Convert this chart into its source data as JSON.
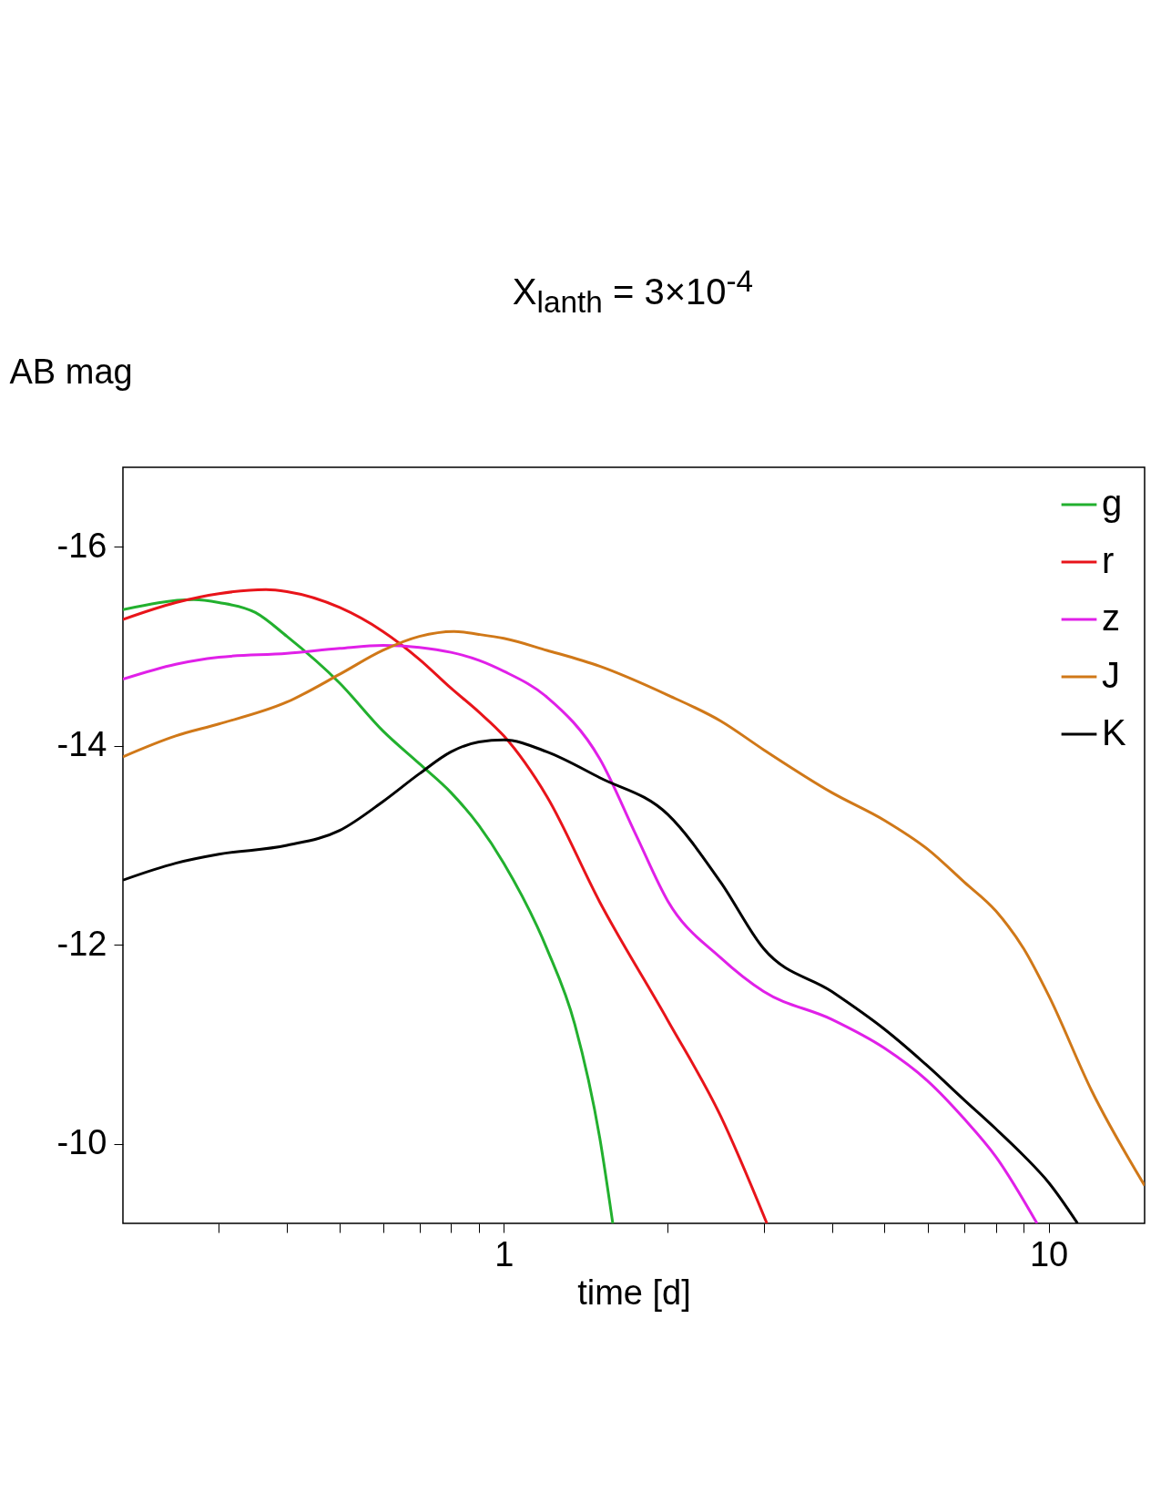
{
  "chart_data": {
    "type": "line",
    "title": "X$_{lanth}$ = 3×10$^{-4}$",
    "xlabel": "time [d]",
    "ylabel": "AB mag",
    "log": "x",
    "grid": false,
    "legend": "top right",
    "line_style": "solid",
    "marker": "none",
    "xlim": [
      0.2,
      15
    ],
    "xticks": [
      {
        "value": 0.3,
        "label": null
      },
      {
        "value": 0.4,
        "label": null
      },
      {
        "value": 0.5,
        "label": null
      },
      {
        "value": 0.6,
        "label": null
      },
      {
        "value": 0.7,
        "label": null
      },
      {
        "value": 0.8,
        "label": null
      },
      {
        "value": 0.9,
        "label": null
      },
      1,
      {
        "value": 2,
        "label": null
      },
      {
        "value": 3,
        "label": null
      },
      {
        "value": 4,
        "label": null
      },
      {
        "value": 5,
        "label": null
      },
      {
        "value": 6,
        "label": null
      },
      {
        "value": 7,
        "label": null
      },
      {
        "value": 8,
        "label": null
      },
      {
        "value": 9,
        "label": null
      },
      10
    ],
    "ylim": [
      -9.2,
      -16.8
    ],
    "yticks": [
      -16,
      -14,
      -12,
      -10
    ],
    "series": [
      {
        "name": "g",
        "color": "#22b02e",
        "x": [
          0.2,
          0.27,
          0.3,
          0.35,
          0.4,
          0.5,
          0.6,
          0.7,
          0.8,
          0.9,
          1,
          1.2,
          1.35,
          1.5,
          1.585
        ],
        "values": [
          -15.37,
          -15.47,
          -15.44,
          -15.34,
          -15.1,
          -14.63,
          -14.15,
          -13.82,
          -13.53,
          -13.2,
          -12.82,
          -11.96,
          -11.2,
          -10.06,
          -9.2
        ]
      },
      {
        "name": "r",
        "color": "#e8141a",
        "x": [
          0.2,
          0.25,
          0.3,
          0.366,
          0.4,
          0.5,
          0.6,
          0.7,
          0.8,
          0.9,
          1,
          1.2,
          1.5,
          2,
          2.5,
          3.04
        ],
        "values": [
          -15.27,
          -15.44,
          -15.53,
          -15.57,
          -15.55,
          -15.39,
          -15.15,
          -14.87,
          -14.58,
          -14.34,
          -14.1,
          -13.49,
          -12.43,
          -11.24,
          -10.28,
          -9.2
        ]
      },
      {
        "name": "z",
        "color": "#e020e8",
        "x": [
          0.2,
          0.25,
          0.3,
          0.4,
          0.5,
          0.6,
          0.7,
          0.8,
          0.9,
          1,
          1.2,
          1.5,
          1.75,
          2,
          2.5,
          3,
          4,
          5,
          6,
          7,
          8,
          9.52
        ],
        "values": [
          -14.67,
          -14.82,
          -14.89,
          -14.93,
          -14.98,
          -15.01,
          -14.99,
          -14.94,
          -14.86,
          -14.75,
          -14.49,
          -13.87,
          -13.1,
          -12.44,
          -11.87,
          -11.53,
          -11.25,
          -10.96,
          -10.63,
          -10.25,
          -9.87,
          -9.2
        ]
      },
      {
        "name": "J",
        "color": "#d07818",
        "x": [
          0.2,
          0.25,
          0.3,
          0.4,
          0.5,
          0.6,
          0.7,
          0.81,
          0.9,
          1,
          1.2,
          1.5,
          2,
          2.5,
          3,
          4,
          5,
          6,
          7,
          8,
          9,
          10,
          12,
          15
        ],
        "values": [
          -13.89,
          -14.1,
          -14.22,
          -14.44,
          -14.72,
          -14.96,
          -15.1,
          -15.15,
          -15.12,
          -15.08,
          -14.96,
          -14.8,
          -14.51,
          -14.25,
          -13.96,
          -13.53,
          -13.25,
          -12.96,
          -12.63,
          -12.34,
          -11.96,
          -11.49,
          -10.53,
          -9.58
        ]
      },
      {
        "name": "K",
        "color": "#000000",
        "x": [
          0.2,
          0.25,
          0.3,
          0.4,
          0.5,
          0.6,
          0.7,
          0.8,
          0.9,
          1,
          1.2,
          1.5,
          2,
          2.5,
          3,
          4,
          5,
          6,
          7,
          8,
          9,
          10,
          11.3
        ],
        "values": [
          -12.65,
          -12.82,
          -12.91,
          -13.0,
          -13.15,
          -13.44,
          -13.72,
          -13.94,
          -14.04,
          -14.06,
          -13.94,
          -13.68,
          -13.31,
          -12.63,
          -11.96,
          -11.53,
          -11.15,
          -10.78,
          -10.44,
          -10.15,
          -9.88,
          -9.61,
          -9.2
        ]
      }
    ]
  }
}
